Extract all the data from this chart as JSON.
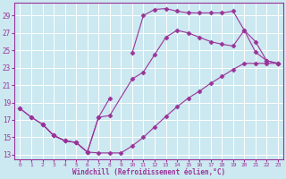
{
  "xlabel": "Windchill (Refroidissement éolien,°C)",
  "xlim": [
    -0.5,
    23.5
  ],
  "ylim": [
    12.5,
    30.5
  ],
  "yticks": [
    13,
    15,
    17,
    19,
    21,
    23,
    25,
    27,
    29
  ],
  "xticks": [
    0,
    1,
    2,
    3,
    4,
    5,
    6,
    7,
    8,
    9,
    10,
    11,
    12,
    13,
    14,
    15,
    16,
    17,
    18,
    19,
    20,
    21,
    22,
    23
  ],
  "bg_color": "#cce8f0",
  "line_color": "#993399",
  "grid_color": "#ffffff",
  "curve1_x": [
    0,
    1,
    2,
    3,
    4,
    5,
    6,
    7,
    8,
    9,
    10,
    11,
    12,
    13,
    14,
    15,
    16,
    17,
    18,
    19,
    20,
    21,
    22,
    23
  ],
  "curve1_y": [
    18.3,
    17.3,
    16.5,
    15.2,
    14.6,
    14.4,
    13.3,
    13.2,
    13.2,
    13.2,
    14.0,
    15.0,
    16.2,
    17.4,
    18.5,
    19.5,
    20.3,
    21.2,
    22.0,
    22.8,
    23.5,
    23.5,
    23.5,
    23.5
  ],
  "curve2_x": [
    0,
    1,
    2,
    3,
    4,
    5,
    6,
    7,
    8,
    9,
    10,
    11,
    12,
    13,
    14,
    15,
    16,
    17,
    18,
    19,
    20,
    21,
    22,
    23
  ],
  "curve2_y": [
    18.3,
    17.3,
    16.5,
    15.2,
    14.6,
    14.4,
    13.3,
    17.3,
    19.5,
    null,
    24.7,
    29.0,
    29.7,
    29.8,
    29.5,
    29.3,
    29.3,
    29.3,
    29.3,
    29.5,
    27.3,
    26.0,
    23.8,
    23.5
  ],
  "curve3_x": [
    2,
    3,
    4,
    5,
    6,
    7,
    8,
    10,
    11,
    12,
    13,
    14,
    15,
    16,
    17,
    18,
    19,
    20,
    21,
    22,
    23
  ],
  "curve3_y": [
    16.5,
    15.2,
    14.6,
    14.4,
    13.3,
    17.3,
    17.5,
    21.7,
    22.5,
    24.5,
    26.5,
    27.3,
    27.0,
    26.5,
    26.0,
    25.7,
    25.5,
    27.3,
    24.8,
    23.8,
    23.5
  ]
}
